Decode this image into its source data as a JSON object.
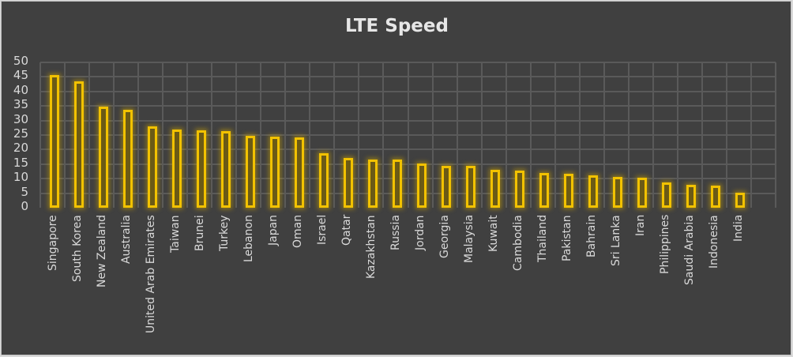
{
  "chart_data": {
    "type": "bar",
    "title": "LTE Speed",
    "xlabel": "",
    "ylabel": "",
    "ylim": [
      0,
      50
    ],
    "yticks": [
      0,
      5,
      10,
      15,
      20,
      25,
      30,
      35,
      40,
      45,
      50
    ],
    "grid": true,
    "legend": null,
    "categories": [
      "Singapore",
      "South Korea",
      "New Zealand",
      "Australia",
      "United Arab Emirates",
      "Taiwan",
      "Brunei",
      "Turkey",
      "Lebanon",
      "Japan",
      "Oman",
      "Israel",
      "Qatar",
      "Kazakhstan",
      "Russia",
      "Jordan",
      "Georgia",
      "Malaysia",
      "Kuwait",
      "Cambodia",
      "Thailand",
      "Pakistan",
      "Bahrain",
      "Sri Lanka",
      "Iran",
      "Philippines",
      "Saudi Arabia",
      "Indonesia",
      "India"
    ],
    "values": [
      45.6,
      43.4,
      34.8,
      33.6,
      27.9,
      26.8,
      26.5,
      26.3,
      24.7,
      24.4,
      24.1,
      18.7,
      17.0,
      16.5,
      16.5,
      15.2,
      14.4,
      14.4,
      13.0,
      12.9,
      12.0,
      11.7,
      11.2,
      10.5,
      10.4,
      8.7,
      7.9,
      7.7,
      5.3
    ],
    "colors": {
      "bar_border": "#f2c200",
      "bar_fill": "#6b5a16",
      "background": "#404040",
      "grid": "#5a5a5a",
      "text": "#d9d9d9"
    }
  }
}
